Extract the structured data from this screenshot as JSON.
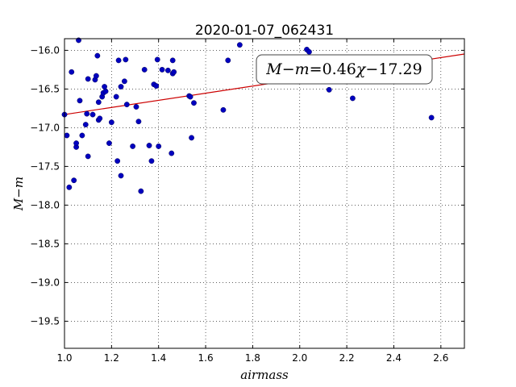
{
  "chart_data": {
    "type": "scatter",
    "title": "2020-01-07_062431",
    "xlabel": "airmass",
    "ylabel": "M−m",
    "xlim": [
      1.0,
      2.7
    ],
    "ylim": [
      -19.85,
      -15.85
    ],
    "y_inverted": true,
    "grid": true,
    "x_ticks": [
      1.0,
      1.2,
      1.4,
      1.6,
      1.8,
      2.0,
      2.2,
      2.4,
      2.6
    ],
    "x_tick_labels": [
      "1.0",
      "1.2",
      "1.4",
      "1.6",
      "1.8",
      "2.0",
      "2.2",
      "2.4",
      "2.6"
    ],
    "y_ticks": [
      -16.0,
      -16.5,
      -17.0,
      -17.5,
      -18.0,
      -18.5,
      -19.0,
      -19.5
    ],
    "y_tick_labels": [
      "−16.0",
      "−16.5",
      "−17.0",
      "−17.5",
      "−18.0",
      "−18.5",
      "−19.0",
      "−19.5"
    ],
    "series": [
      {
        "color": "#0000bf",
        "points": [
          [
            1.0,
            -16.83
          ],
          [
            1.01,
            -17.1
          ],
          [
            1.02,
            -17.77
          ],
          [
            1.03,
            -16.28
          ],
          [
            1.04,
            -17.68
          ],
          [
            1.05,
            -17.25
          ],
          [
            1.05,
            -17.2
          ],
          [
            1.06,
            -15.87
          ],
          [
            1.065,
            -16.65
          ],
          [
            1.075,
            -17.1
          ],
          [
            1.09,
            -16.96
          ],
          [
            1.095,
            -16.82
          ],
          [
            1.1,
            -16.37
          ],
          [
            1.1,
            -17.37
          ],
          [
            1.12,
            -16.83
          ],
          [
            1.13,
            -16.38
          ],
          [
            1.135,
            -16.33
          ],
          [
            1.14,
            -16.07
          ],
          [
            1.145,
            -16.67
          ],
          [
            1.145,
            -16.9
          ],
          [
            1.15,
            -16.88
          ],
          [
            1.16,
            -16.6
          ],
          [
            1.165,
            -16.55
          ],
          [
            1.17,
            -16.47
          ],
          [
            1.175,
            -16.53
          ],
          [
            1.19,
            -17.2
          ],
          [
            1.2,
            -16.93
          ],
          [
            1.22,
            -16.6
          ],
          [
            1.225,
            -17.43
          ],
          [
            1.23,
            -16.13
          ],
          [
            1.24,
            -16.47
          ],
          [
            1.24,
            -17.62
          ],
          [
            1.255,
            -16.4
          ],
          [
            1.26,
            -16.12
          ],
          [
            1.265,
            -16.7
          ],
          [
            1.29,
            -17.24
          ],
          [
            1.305,
            -16.73
          ],
          [
            1.315,
            -16.92
          ],
          [
            1.325,
            -17.82
          ],
          [
            1.34,
            -16.25
          ],
          [
            1.36,
            -17.23
          ],
          [
            1.37,
            -17.43
          ],
          [
            1.38,
            -16.44
          ],
          [
            1.39,
            -16.46
          ],
          [
            1.395,
            -16.12
          ],
          [
            1.4,
            -17.24
          ],
          [
            1.415,
            -16.25
          ],
          [
            1.44,
            -16.26
          ],
          [
            1.455,
            -17.33
          ],
          [
            1.46,
            -16.13
          ],
          [
            1.46,
            -16.3
          ],
          [
            1.465,
            -16.28
          ],
          [
            1.53,
            -16.59
          ],
          [
            1.535,
            -16.6
          ],
          [
            1.54,
            -17.13
          ],
          [
            1.55,
            -16.68
          ],
          [
            1.675,
            -16.77
          ],
          [
            1.695,
            -16.13
          ],
          [
            1.745,
            -15.93
          ],
          [
            2.03,
            -15.99
          ],
          [
            2.04,
            -16.02
          ],
          [
            2.125,
            -16.51
          ],
          [
            2.225,
            -16.62
          ],
          [
            2.56,
            -16.87
          ]
        ]
      }
    ],
    "fit_line": {
      "slope": 0.46,
      "intercept": -17.29,
      "color": "#cc0000"
    },
    "annotation": {
      "parts": [
        {
          "text": "M",
          "italic": true
        },
        {
          "text": "−",
          "italic": false
        },
        {
          "text": "m",
          "italic": true
        },
        {
          "text": "=0.46",
          "italic": false
        },
        {
          "text": "χ",
          "italic": true
        },
        {
          "text": "−17.29",
          "italic": false
        }
      ]
    }
  }
}
